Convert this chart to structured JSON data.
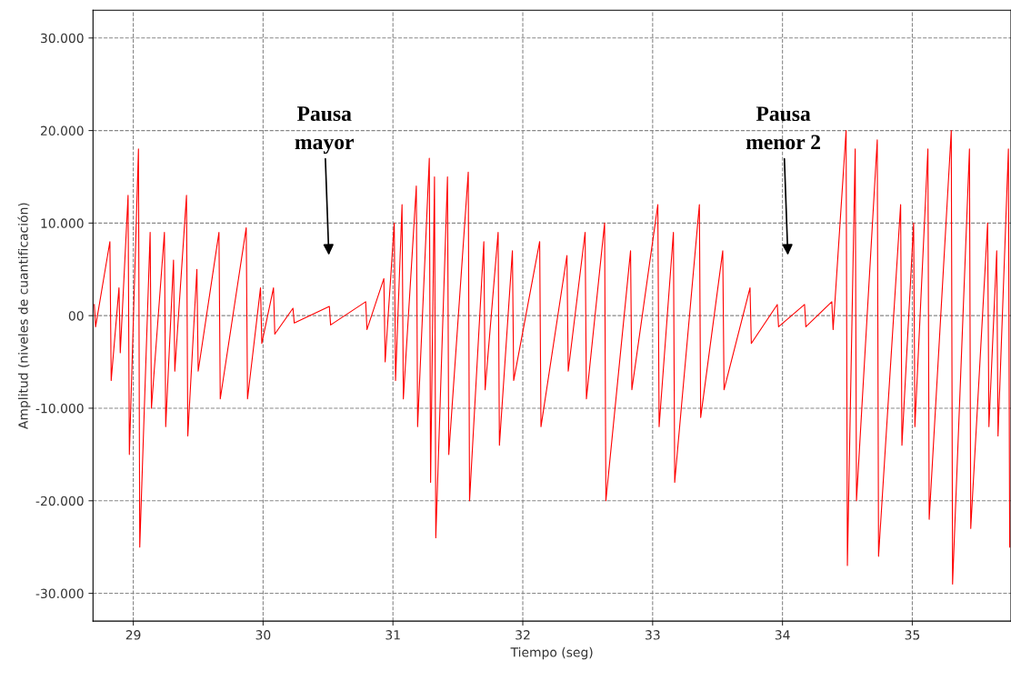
{
  "chart_data": {
    "type": "line",
    "xlabel": "Tiempo (seg)",
    "ylabel": "Amplitud (niveles de cuantificación)",
    "x": [
      28.7,
      28.71,
      28.82,
      28.83,
      28.89,
      28.9,
      28.96,
      28.97,
      29.04,
      29.05,
      29.13,
      29.14,
      29.24,
      29.25,
      29.31,
      29.32,
      29.41,
      29.42,
      29.49,
      29.5,
      29.66,
      29.67,
      29.87,
      29.88,
      29.98,
      29.99,
      30.08,
      30.09,
      30.23,
      30.24,
      30.51,
      30.52,
      30.79,
      30.8,
      30.93,
      30.94,
      31.01,
      31.02,
      31.07,
      31.08,
      31.18,
      31.19,
      31.28,
      31.29,
      31.32,
      31.33,
      31.42,
      31.43,
      31.58,
      31.59,
      31.7,
      31.71,
      31.81,
      31.82,
      31.92,
      31.93,
      32.13,
      32.14,
      32.34,
      32.35,
      32.48,
      32.49,
      32.63,
      32.64,
      32.83,
      32.84,
      33.04,
      33.05,
      33.16,
      33.17,
      33.36,
      33.37,
      33.54,
      33.55,
      33.75,
      33.76,
      33.96,
      33.97,
      34.17,
      34.18,
      34.38,
      34.39,
      34.49,
      34.5,
      34.56,
      34.57,
      34.73,
      34.74,
      34.91,
      34.92,
      35.01,
      35.02,
      35.12,
      35.13,
      35.3,
      35.31,
      35.44,
      35.45,
      35.58,
      35.59,
      35.65,
      35.66,
      35.74,
      35.75
    ],
    "series": [
      {
        "color": "#ff0000",
        "values": [
          1200,
          -1200,
          8000,
          -7000,
          3000,
          -4000,
          13000,
          -15000,
          18000,
          -25000,
          9000,
          -10000,
          9000,
          -12000,
          6000,
          -6000,
          13000,
          -13000,
          5000,
          -6000,
          9000,
          -9000,
          9500,
          -9000,
          3000,
          -3000,
          3000,
          -2000,
          800,
          -800,
          1000,
          -1000,
          1500,
          -1500,
          4000,
          -5000,
          10000,
          -7000,
          12000,
          -9000,
          14000,
          -12000,
          17000,
          -18000,
          15000,
          -24000,
          15000,
          -15000,
          15500,
          -20000,
          8000,
          -8000,
          9000,
          -14000,
          7000,
          -7000,
          8000,
          -12000,
          6500,
          -6000,
          9000,
          -9000,
          10000,
          -20000,
          7000,
          -8000,
          12000,
          -12000,
          9000,
          -18000,
          12000,
          -11000,
          7000,
          -8000,
          3000,
          -3000,
          1200,
          -1200,
          1200,
          -1200,
          1500,
          -1500,
          20000,
          -27000,
          18000,
          -20000,
          19000,
          -26000,
          12000,
          -14000,
          10000,
          -12000,
          18000,
          -22000,
          20000,
          -29000,
          18000,
          -23000,
          10000,
          -12000,
          7000,
          -13000,
          18000,
          -25000
        ]
      }
    ],
    "xlim": [
      28.69,
      35.76
    ],
    "ylim": [
      -33000,
      33000
    ],
    "xticks": [
      29,
      30,
      31,
      32,
      33,
      34,
      35
    ],
    "yticks": [
      {
        "value": -30000,
        "label": "-30.000"
      },
      {
        "value": -20000,
        "label": "-20.000"
      },
      {
        "value": -10000,
        "label": "-10.000"
      },
      {
        "value": 0,
        "label": "00"
      },
      {
        "value": 10000,
        "label": "10.000"
      },
      {
        "value": 20000,
        "label": "20.000"
      },
      {
        "value": 30000,
        "label": "30.000"
      }
    ],
    "grid": true,
    "line_style": "solid",
    "marker": "none",
    "annotations": [
      "Pausa\nmayor",
      "Pausa\nmenor 2"
    ]
  }
}
